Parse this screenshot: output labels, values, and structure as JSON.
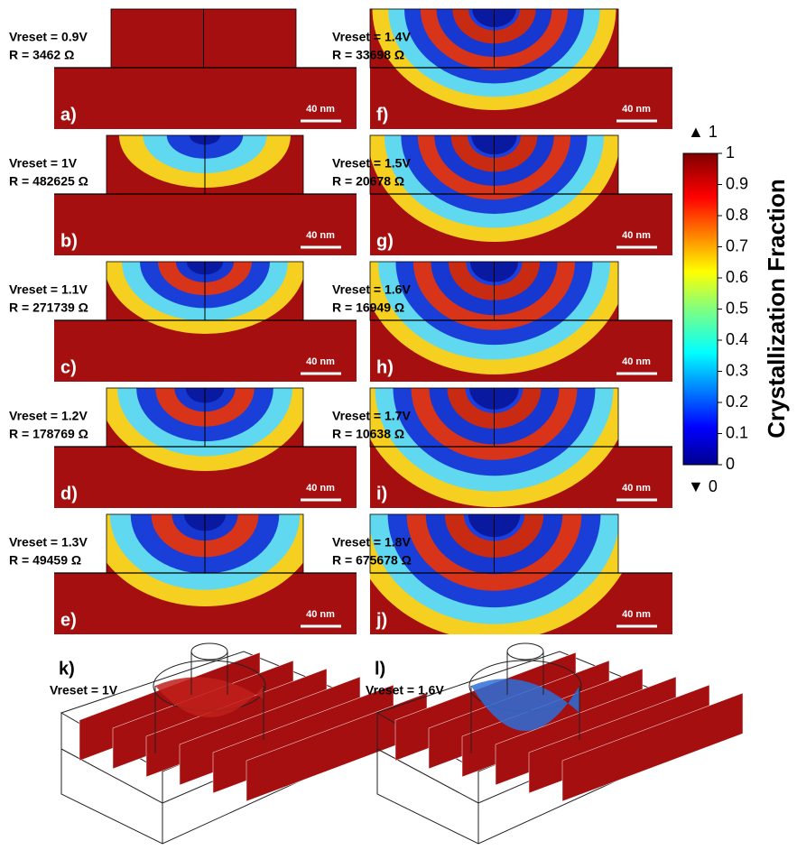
{
  "panels": [
    {
      "label": "a)",
      "vreset": "Vreset = 0.9V",
      "resistance": "R = 3462 Ω",
      "scale_bar": "40 nm"
    },
    {
      "label": "b)",
      "vreset": "Vreset = 1V",
      "resistance": "R = 482625 Ω",
      "scale_bar": "40 nm"
    },
    {
      "label": "c)",
      "vreset": "Vreset = 1.1V",
      "resistance": "R = 271739 Ω",
      "scale_bar": "40 nm"
    },
    {
      "label": "d)",
      "vreset": "Vreset = 1.2V",
      "resistance": "R = 178769 Ω",
      "scale_bar": "40 nm"
    },
    {
      "label": "e)",
      "vreset": "Vreset = 1.3V",
      "resistance": "R = 49459 Ω",
      "scale_bar": "40 nm"
    },
    {
      "label": "f)",
      "vreset": "Vreset = 1.4V",
      "resistance": "R = 33698 Ω",
      "scale_bar": "40 nm"
    },
    {
      "label": "g)",
      "vreset": "Vreset = 1.5V",
      "resistance": "R = 20678 Ω",
      "scale_bar": "40 nm"
    },
    {
      "label": "h)",
      "vreset": "Vreset = 1.6V",
      "resistance": "R = 16949 Ω",
      "scale_bar": "40 nm"
    },
    {
      "label": "i)",
      "vreset": "Vreset = 1.7V",
      "resistance": "R = 10638 Ω",
      "scale_bar": "40 nm"
    },
    {
      "label": "j)",
      "vreset": "Vreset = 1.8V",
      "resistance": "R = 675678 Ω",
      "scale_bar": "40 nm"
    }
  ],
  "views_3d": [
    {
      "label": "k)",
      "vreset": "Vreset = 1V"
    },
    {
      "label": "l)",
      "vreset": "Vreset = 1.6V"
    }
  ],
  "colorbar": {
    "title": "Crystallization Fraction",
    "top_marker": "▲ 1",
    "bottom_marker": "▼ 0",
    "ticks": [
      0,
      0.1,
      0.2,
      0.3,
      0.4,
      0.5,
      0.6,
      0.7,
      0.8,
      0.9,
      1
    ]
  }
}
